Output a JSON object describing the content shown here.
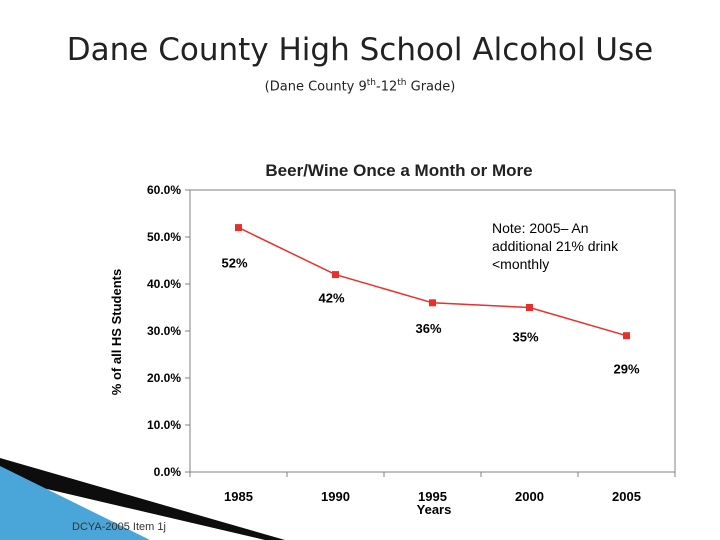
{
  "slide": {
    "title": "Dane County High School Alcohol Use",
    "subtitle_prefix": "(Dane County 9",
    "subtitle_sup1": "th",
    "subtitle_mid": "-12",
    "subtitle_sup2": "th",
    "subtitle_suffix": " Grade)",
    "footer": "DCYA-2005 Item 1j"
  },
  "note": {
    "line1": "Note:  2005– An",
    "line2": "additional 21% drink",
    "line3": "<monthly"
  },
  "colors": {
    "series": "#e8302a",
    "axis": "#808080",
    "text": "#000000",
    "deco_dark": "#0d0d0d",
    "deco_blue": "#4aa6d8"
  },
  "chart_data": {
    "type": "line",
    "title": "Beer/Wine Once a Month or More",
    "xlabel": "Years",
    "ylabel": "% of all HS Students",
    "categories": [
      "1985",
      "1990",
      "1995",
      "2000",
      "2005"
    ],
    "series": [
      {
        "name": "Beer/Wine Once a Month or More",
        "values": [
          52,
          42,
          36,
          35,
          29
        ]
      }
    ],
    "data_labels": [
      "52%",
      "42%",
      "36%",
      "35%",
      "29%"
    ],
    "ylim": [
      0,
      60
    ],
    "yticks": [
      0,
      10,
      20,
      30,
      40,
      50,
      60
    ],
    "ytick_labels": [
      "0.0%",
      "10.0%",
      "20.0%",
      "30.0%",
      "40.0%",
      "50.0%",
      "60.0%"
    ],
    "grid": false,
    "legend": "none"
  }
}
